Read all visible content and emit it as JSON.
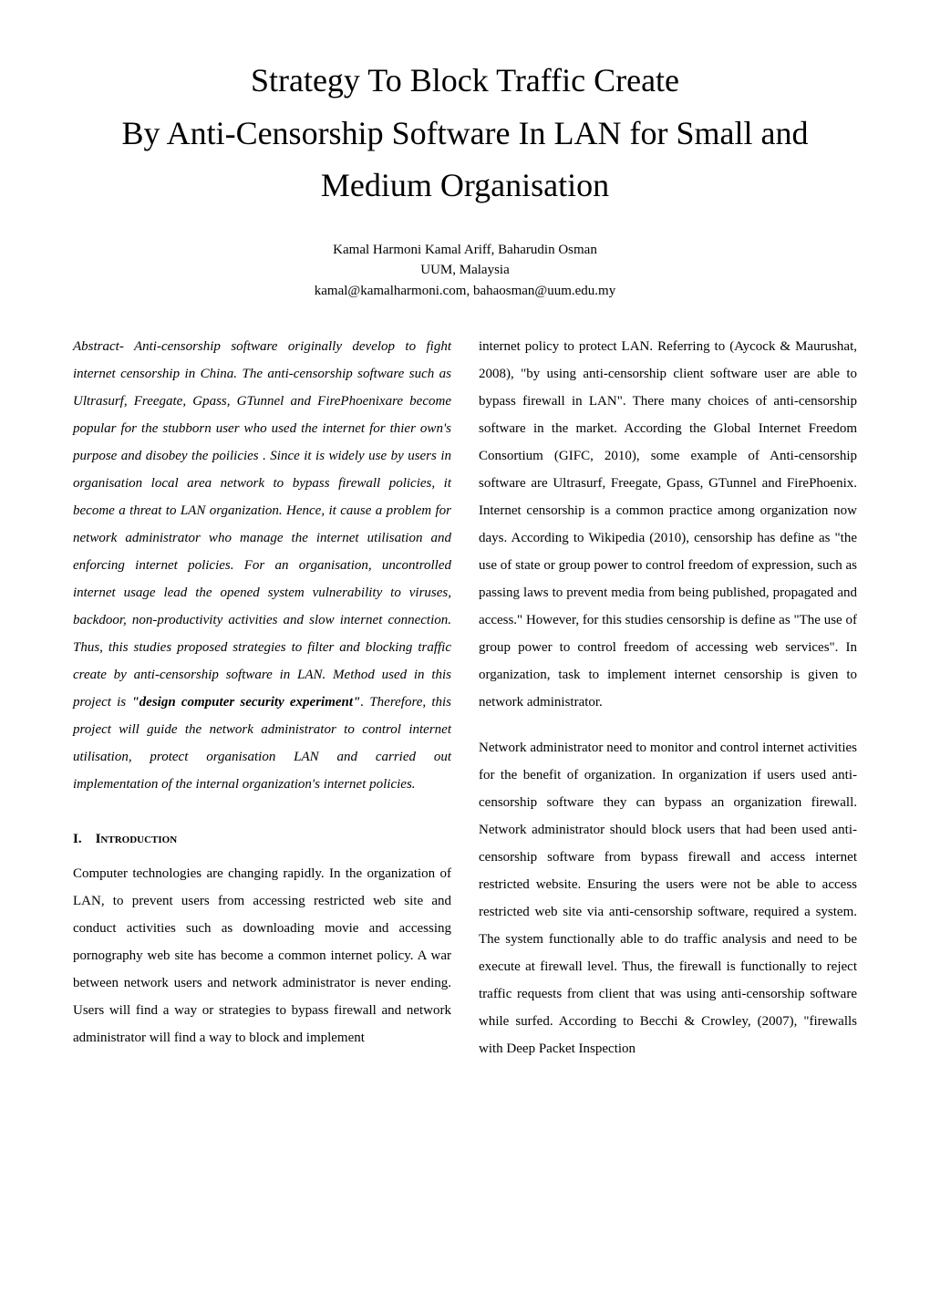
{
  "title": "Strategy To Block Traffic Create\nBy Anti-Censorship Software In LAN for Small and Medium Organisation",
  "authors": {
    "names": "Kamal Harmoni Kamal Ariff, Baharudin Osman",
    "affiliation": "UUM, Malaysia",
    "emails": "kamal@kamalharmoni.com, bahaosman@uum.edu.my"
  },
  "abstract": {
    "prefix": "Abstract- Anti-censorship software originally develop to fight internet censorship in China. The anti-censorship software such as  Ultrasurf, Freegate, Gpass, GTunnel and FirePhoenixare become popular for the stubborn user who used the internet for thier own's purpose and disobey the poilicies . Since it is  widely  use by users in organisation local area network to bypass firewall policies, it become a threat to LAN organization. Hence, it cause a problem for network administrator who manage the internet utilisation and enforcing internet policies. For an organisation, uncontrolled internet usage lead the opened system vulnerability to viruses, backdoor, non-productivity activities and slow internet connection. Thus, this studies proposed strategies to filter and blocking traffic create by anti-censorship software in LAN. Method used in this project is ",
    "bold_phrase": "\"design computer security experiment\"",
    "suffix": ". Therefore, this project will guide the network administrator to control internet  utilisation, protect organisation LAN and carried out implementation of the internal organization's internet policies."
  },
  "section1": {
    "number": "I.",
    "title": "Introduction"
  },
  "left_body": {
    "para1": "Computer technologies are changing rapidly. In the organization of LAN, to prevent users from accessing restricted web site and conduct activities such as downloading movie and accessing pornography web site has become a common internet policy. A war between network users and network administrator is never ending. Users will find a way or strategies to bypass firewall and network administrator will find a way to block and implement"
  },
  "right_body": {
    "para1": "internet policy to protect LAN. Referring to (Aycock & Maurushat, 2008), \"by using anti-censorship client software user are able to bypass firewall in LAN\". There many choices of anti-censorship software in the market. According the Global Internet Freedom Consortium (GIFC, 2010), some example of Anti-censorship software are Ultrasurf, Freegate, Gpass, GTunnel and FirePhoenix. Internet censorship is a common practice among organization now days. According to Wikipedia (2010), censorship has define as \"the use of state or group power to control freedom of expression, such as passing laws to prevent media from being published, propagated and access.\" However, for this studies censorship is define as \"The use of group power to control freedom of accessing web services\". In organization, task to implement internet censorship is given to network administrator.",
    "para2": "Network administrator need to monitor and control internet activities for the benefit of organization. In organization if users used anti-censorship software they can bypass an organization firewall. Network administrator should block users that had been used anti-censorship software from bypass firewall and access internet restricted website. Ensuring the users were not be able to access restricted web site via anti-censorship software, required a system. The system functionally able to do traffic analysis and need to be execute at firewall level. Thus, the firewall is functionally to reject traffic requests from client that was using anti-censorship software while surfed. According to Becchi & Crowley, (2007), \"firewalls with Deep Packet Inspection"
  },
  "styles": {
    "background_color": "#ffffff",
    "text_color": "#000000",
    "title_fontsize": 36,
    "author_fontsize": 15,
    "body_fontsize": 15,
    "line_height": 2.0,
    "font_family": "Times New Roman"
  }
}
